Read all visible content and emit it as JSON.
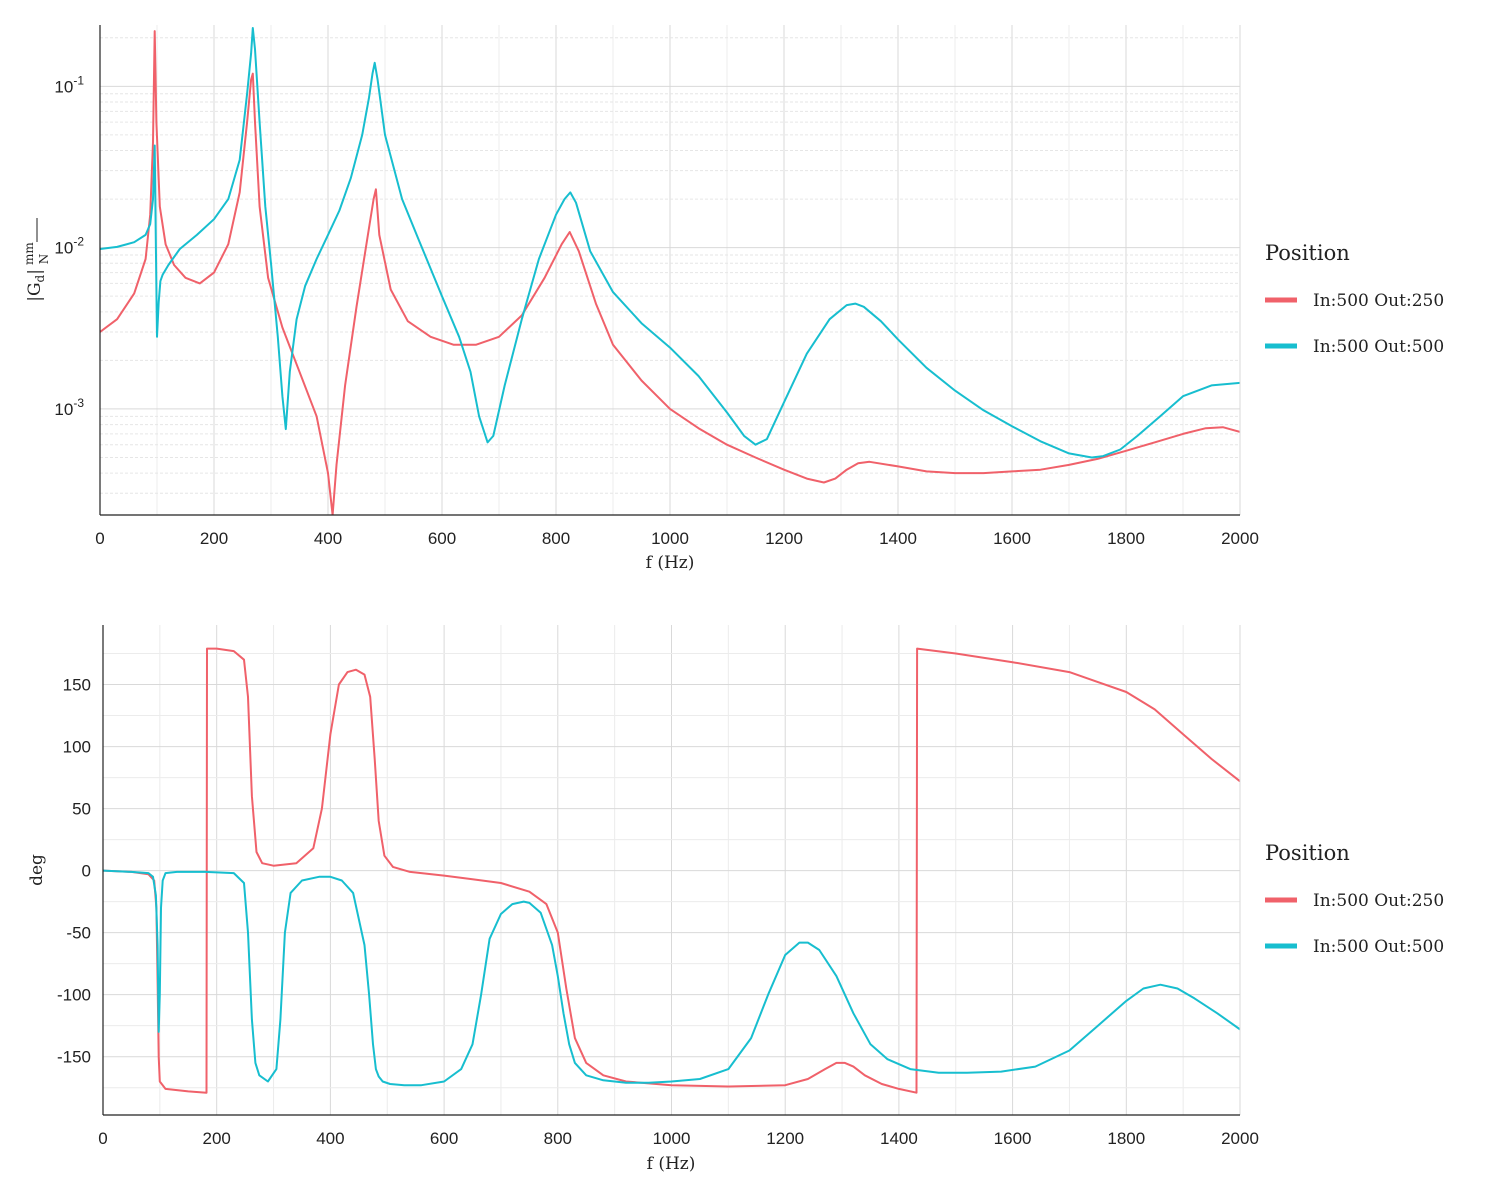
{
  "chart_data": [
    {
      "type": "line",
      "panel": "magnitude",
      "xlabel": "f (Hz)",
      "ylabel": "|G_d| mm/N",
      "ylabel_parts": {
        "main": "|G",
        "sub": "d",
        "bar": "|",
        "num": "mm",
        "den": "N"
      },
      "yscale": "log",
      "xlim": [
        0,
        2000
      ],
      "ylim": [
        0.00022,
        0.24
      ],
      "grid": true,
      "x_ticks": [
        0,
        200,
        400,
        600,
        800,
        1000,
        1200,
        1400,
        1600,
        1800,
        2000
      ],
      "x_tick_labels": [
        "0",
        "200",
        "400",
        "600",
        "800",
        "1000",
        "1200",
        "1400",
        "1600",
        "1800",
        "2000"
      ],
      "y_ticks": [
        0.001,
        0.01,
        0.1
      ],
      "y_tick_labels": [
        {
          "base": "10",
          "exp": "-3"
        },
        {
          "base": "10",
          "exp": "-2"
        },
        {
          "base": "10",
          "exp": "-1"
        }
      ],
      "legend": {
        "title": "Position",
        "placement": "right"
      },
      "series": [
        {
          "name": "In:500 Out:250",
          "color": "#F0616A",
          "x": [
            0,
            30,
            60,
            80,
            88,
            93,
            96,
            99,
            105,
            115,
            130,
            150,
            175,
            200,
            225,
            245,
            258,
            265,
            268,
            272,
            280,
            295,
            320,
            350,
            380,
            400,
            408,
            415,
            430,
            450,
            470,
            480,
            484,
            490,
            510,
            540,
            580,
            620,
            660,
            700,
            740,
            780,
            810,
            824,
            840,
            870,
            900,
            950,
            1000,
            1050,
            1100,
            1150,
            1200,
            1240,
            1270,
            1290,
            1310,
            1330,
            1350,
            1400,
            1450,
            1500,
            1550,
            1600,
            1650,
            1700,
            1750,
            1800,
            1850,
            1900,
            1940,
            1970,
            2000
          ],
          "y": [
            0.003,
            0.0036,
            0.0052,
            0.0085,
            0.016,
            0.045,
            0.22,
            0.06,
            0.018,
            0.0105,
            0.0078,
            0.0065,
            0.006,
            0.007,
            0.0105,
            0.022,
            0.06,
            0.11,
            0.12,
            0.06,
            0.018,
            0.0065,
            0.0032,
            0.0017,
            0.0009,
            0.0004,
            0.00022,
            0.00045,
            0.0014,
            0.0043,
            0.012,
            0.02,
            0.023,
            0.012,
            0.0055,
            0.0035,
            0.0028,
            0.0025,
            0.0025,
            0.0028,
            0.0038,
            0.0065,
            0.0105,
            0.0125,
            0.0095,
            0.0045,
            0.0025,
            0.0015,
            0.001,
            0.00076,
            0.0006,
            0.0005,
            0.00042,
            0.00037,
            0.00035,
            0.00037,
            0.00042,
            0.00046,
            0.00047,
            0.00044,
            0.00041,
            0.0004,
            0.0004,
            0.00041,
            0.00042,
            0.00045,
            0.00049,
            0.00055,
            0.00062,
            0.0007,
            0.00076,
            0.00077,
            0.00072
          ]
        },
        {
          "name": "In:500 Out:500",
          "color": "#17BECF",
          "x": [
            0,
            30,
            60,
            80,
            88,
            93,
            96,
            98,
            100,
            103,
            106,
            110,
            120,
            140,
            170,
            200,
            225,
            245,
            258,
            265,
            268,
            272,
            280,
            290,
            300,
            312,
            320,
            326,
            333,
            345,
            360,
            380,
            400,
            420,
            440,
            460,
            472,
            478,
            482,
            487,
            500,
            530,
            560,
            600,
            630,
            650,
            665,
            680,
            690,
            710,
            740,
            770,
            800,
            815,
            825,
            835,
            860,
            900,
            950,
            1000,
            1050,
            1100,
            1130,
            1150,
            1170,
            1200,
            1240,
            1280,
            1310,
            1325,
            1340,
            1370,
            1400,
            1450,
            1500,
            1550,
            1600,
            1650,
            1700,
            1740,
            1760,
            1790,
            1820,
            1860,
            1900,
            1950,
            2000
          ],
          "y": [
            0.0098,
            0.0101,
            0.0108,
            0.012,
            0.014,
            0.02,
            0.043,
            0.01,
            0.0028,
            0.0046,
            0.0062,
            0.0068,
            0.0078,
            0.0098,
            0.012,
            0.015,
            0.02,
            0.035,
            0.09,
            0.16,
            0.23,
            0.17,
            0.06,
            0.018,
            0.008,
            0.0028,
            0.0012,
            0.00075,
            0.0017,
            0.0036,
            0.0058,
            0.0085,
            0.012,
            0.017,
            0.027,
            0.05,
            0.085,
            0.12,
            0.14,
            0.11,
            0.05,
            0.02,
            0.011,
            0.005,
            0.0028,
            0.0017,
            0.0009,
            0.00062,
            0.00068,
            0.0014,
            0.0036,
            0.0085,
            0.016,
            0.02,
            0.022,
            0.019,
            0.0095,
            0.0053,
            0.0034,
            0.0024,
            0.0016,
            0.00095,
            0.00068,
            0.0006,
            0.00065,
            0.0011,
            0.0022,
            0.0036,
            0.0044,
            0.0045,
            0.0043,
            0.0035,
            0.0027,
            0.0018,
            0.0013,
            0.00098,
            0.00078,
            0.00063,
            0.00053,
            0.0005,
            0.00051,
            0.00056,
            0.00068,
            0.0009,
            0.0012,
            0.0014,
            0.00145
          ]
        }
      ]
    },
    {
      "type": "line",
      "panel": "phase",
      "xlabel": "f (Hz)",
      "ylabel": "deg",
      "yscale": "linear",
      "xlim": [
        0,
        2000
      ],
      "ylim": [
        -197,
        198
      ],
      "grid": true,
      "x_ticks": [
        0,
        200,
        400,
        600,
        800,
        1000,
        1200,
        1400,
        1600,
        1800,
        2000
      ],
      "x_tick_labels": [
        "0",
        "200",
        "400",
        "600",
        "800",
        "1000",
        "1200",
        "1400",
        "1600",
        "1800",
        "2000"
      ],
      "y_ticks": [
        -150,
        -100,
        -50,
        0,
        50,
        100,
        150
      ],
      "y_tick_labels": [
        "-150",
        "-100",
        "-50",
        "0",
        "50",
        "100",
        "150"
      ],
      "legend": {
        "title": "Position",
        "placement": "right"
      },
      "series": [
        {
          "name": "In:500 Out:250",
          "color": "#F0616A",
          "x": [
            0,
            50,
            80,
            90,
            94,
            96,
            98,
            100,
            110,
            150,
            182,
            183,
            200,
            230,
            248,
            255,
            262,
            270,
            280,
            300,
            340,
            370,
            385,
            400,
            415,
            430,
            445,
            460,
            470,
            478,
            485,
            495,
            510,
            540,
            600,
            650,
            700,
            750,
            780,
            800,
            815,
            830,
            850,
            880,
            920,
            1000,
            1100,
            1200,
            1240,
            1270,
            1290,
            1305,
            1320,
            1340,
            1370,
            1400,
            1431,
            1432,
            1500,
            1600,
            1700,
            1750,
            1800,
            1850,
            1900,
            1950,
            2000
          ],
          "y": [
            0,
            -1,
            -3,
            -8,
            -30,
            -90,
            -150,
            -170,
            -176,
            -178,
            -179,
            179,
            179,
            177,
            170,
            140,
            60,
            15,
            6,
            4,
            6,
            18,
            50,
            110,
            150,
            160,
            162,
            158,
            140,
            90,
            40,
            12,
            3,
            -1,
            -4,
            -7,
            -10,
            -17,
            -27,
            -50,
            -95,
            -135,
            -155,
            -165,
            -170,
            -173,
            -174,
            -173,
            -168,
            -160,
            -155,
            -155,
            -158,
            -165,
            -172,
            -176,
            -179,
            179,
            175,
            168,
            160,
            152,
            144,
            130,
            110,
            90,
            72
          ]
        },
        {
          "name": "In:500 Out:500",
          "color": "#17BECF",
          "x": [
            0,
            50,
            80,
            88,
            93,
            96,
            98,
            100,
            102,
            105,
            110,
            130,
            180,
            230,
            248,
            255,
            262,
            268,
            275,
            290,
            305,
            312,
            320,
            330,
            350,
            380,
            400,
            420,
            440,
            460,
            468,
            475,
            480,
            485,
            492,
            505,
            530,
            560,
            600,
            630,
            650,
            665,
            680,
            700,
            720,
            740,
            750,
            770,
            790,
            800,
            810,
            820,
            830,
            850,
            880,
            920,
            960,
            1000,
            1050,
            1100,
            1140,
            1170,
            1200,
            1225,
            1240,
            1260,
            1290,
            1320,
            1350,
            1380,
            1420,
            1470,
            1520,
            1580,
            1640,
            1700,
            1750,
            1800,
            1830,
            1860,
            1890,
            1920,
            1960,
            2000
          ],
          "y": [
            0,
            -1,
            -2,
            -5,
            -20,
            -60,
            -130,
            -100,
            -30,
            -8,
            -2,
            -1,
            -1,
            -2,
            -10,
            -50,
            -120,
            -155,
            -165,
            -170,
            -160,
            -120,
            -50,
            -18,
            -8,
            -5,
            -5,
            -8,
            -18,
            -60,
            -100,
            -140,
            -160,
            -166,
            -170,
            -172,
            -173,
            -173,
            -170,
            -160,
            -140,
            -100,
            -55,
            -35,
            -27,
            -25,
            -26,
            -34,
            -60,
            -85,
            -115,
            -140,
            -155,
            -165,
            -169,
            -171,
            -171,
            -170,
            -168,
            -160,
            -135,
            -100,
            -68,
            -58,
            -58,
            -64,
            -85,
            -115,
            -140,
            -152,
            -160,
            -163,
            -163,
            -162,
            -158,
            -145,
            -125,
            -105,
            -95,
            -92,
            -95,
            -103,
            -115,
            -128
          ]
        }
      ]
    }
  ]
}
